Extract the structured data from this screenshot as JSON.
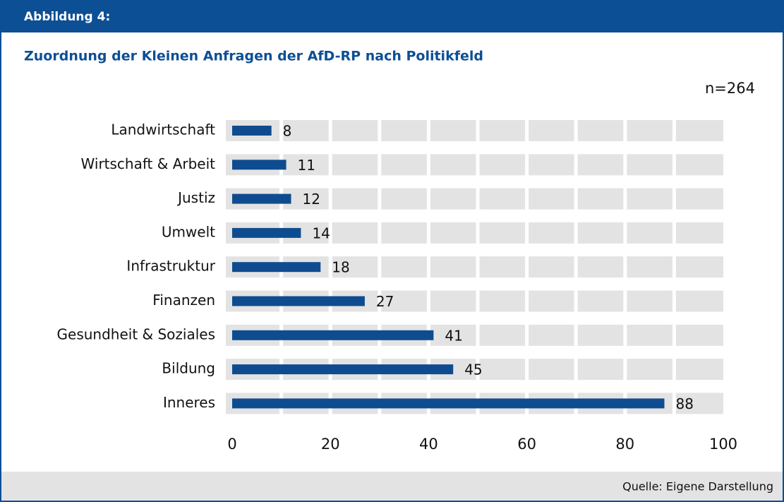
{
  "chart_data": {
    "type": "bar",
    "orientation": "horizontal",
    "figure_label": "Abbildung 4:",
    "title": "Zuordnung der Kleinen Anfragen der AfD-RP nach Politikfeld",
    "annotation": "n=264",
    "source": "Quelle: Eigene Darstellung",
    "categories": [
      "Landwirtschaft",
      "Wirtschaft & Arbeit",
      "Justiz",
      "Umwelt",
      "Infrastruktur",
      "Finanzen",
      "Gesundheit & Soziales",
      "Bildung",
      "Inneres"
    ],
    "values": [
      8,
      11,
      12,
      14,
      18,
      27,
      41,
      45,
      88
    ],
    "color": "#0f4c8f",
    "xlim": [
      0,
      100
    ],
    "xticks": [
      0,
      20,
      40,
      60,
      80,
      100
    ],
    "grid": true
  }
}
